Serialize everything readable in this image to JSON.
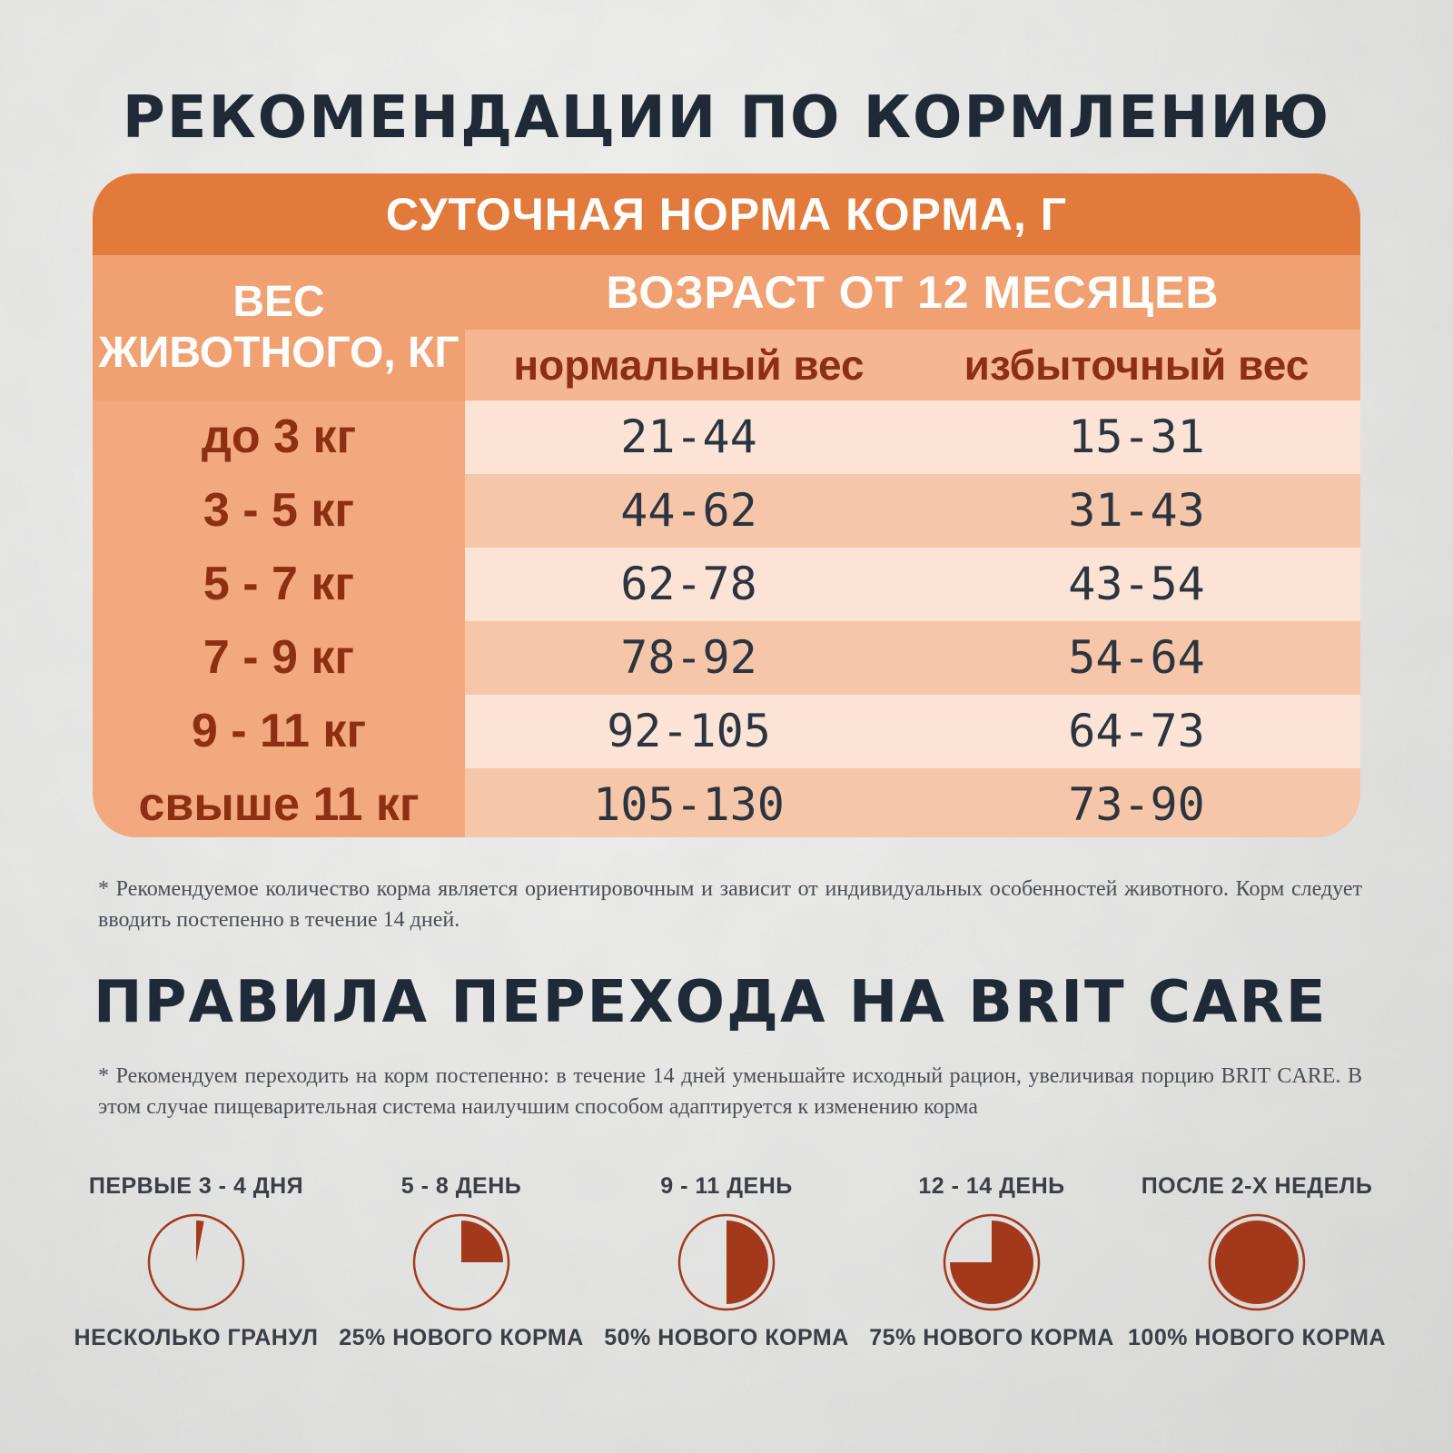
{
  "feeding": {
    "title": "РЕКОМЕНДАЦИИ ПО КОРМЛЕНИЮ",
    "table": {
      "header": "СУТОЧНАЯ НОРМА КОРМА, Г",
      "weight_label_1": "ВЕС",
      "weight_label_2": "ЖИВОТНОГО, КГ",
      "age_label": "ВОЗРАСТ ОТ 12 МЕСЯЦЕВ",
      "col_normal": "нормальный вес",
      "col_over": "избыточный вес",
      "rows": [
        {
          "weight": "до 3 кг",
          "normal": "21-44",
          "over": "15-31"
        },
        {
          "weight": "3 - 5 кг",
          "normal": "44-62",
          "over": "31-43"
        },
        {
          "weight": "5 - 7 кг",
          "normal": "62-78",
          "over": "43-54"
        },
        {
          "weight": "7 - 9 кг",
          "normal": "78-92",
          "over": "54-64"
        },
        {
          "weight": "9 - 11 кг",
          "normal": "92-105",
          "over": "64-73"
        },
        {
          "weight": "свыше 11 кг",
          "normal": "105-130",
          "over": "73-90"
        }
      ]
    },
    "note": "* Рекомендуемое количество корма является ориентировочным и зависит от индивидуальных особенностей животного. Корм следует вводить постепенно в течение 14 дней."
  },
  "transition": {
    "title": "ПРАВИЛА ПЕРЕХОДА НА BRIT CARE",
    "note": "* Рекомендуем переходить на корм постепенно: в течение 14 дней уменьшайте исходный рацион, увеличивая порцию BRIT CARE. В этом случае пищеварительная система наилучшим способом адаптируется к изменению корма",
    "steps": [
      {
        "period": "ПЕРВЫЕ 3 - 4 ДНЯ",
        "label": "НЕСКОЛЬКО ГРАНУЛ",
        "fraction": 0.03
      },
      {
        "period": "5 - 8 ДЕНЬ",
        "label": "25% НОВОГО КОРМА",
        "fraction": 0.25
      },
      {
        "period": "9 - 11 ДЕНЬ",
        "label": "50% НОВОГО КОРМА",
        "fraction": 0.5
      },
      {
        "period": "12 - 14 ДЕНЬ",
        "label": "75% НОВОГО КОРМА",
        "fraction": 0.75
      },
      {
        "period": "ПОСЛЕ 2-Х НЕДЕЛЬ",
        "label": "100% НОВОГО КОРМА",
        "fraction": 1.0
      }
    ]
  },
  "colors": {
    "pie": "#a3391a",
    "pie_ring": "#a3391a",
    "header": "#e27a3c",
    "text_dark": "#1f2a36"
  }
}
